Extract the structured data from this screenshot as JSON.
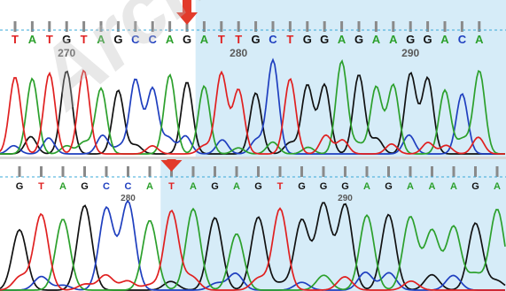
{
  "colors": {
    "A": "#2ca02c",
    "C": "#1f3fbf",
    "G": "#111111",
    "T": "#e02020",
    "highlight": "#d6ecf8",
    "marker": "#e23a2a",
    "tick": "#8a8a8a",
    "guide": "#3aa8d8"
  },
  "top_trace": {
    "bases": [
      "T",
      "A",
      "T",
      "G",
      "T",
      "A",
      "G",
      "C",
      "C",
      "A",
      "G",
      "A",
      "T",
      "T",
      "G",
      "C",
      "T",
      "G",
      "G",
      "A",
      "G",
      "A",
      "A",
      "G",
      "G",
      "A",
      "C",
      "A"
    ],
    "positions": [
      {
        "label": "270",
        "base_index": 3
      },
      {
        "label": "280",
        "base_index": 13
      },
      {
        "label": "290",
        "base_index": 23
      }
    ],
    "marker_base_index": 10,
    "highlight_start_index": 11
  },
  "bottom_trace": {
    "bases": [
      "G",
      "T",
      "A",
      "G",
      "C",
      "C",
      "A",
      "T",
      "A",
      "G",
      "A",
      "G",
      "T",
      "G",
      "G",
      "G",
      "A",
      "G",
      "A",
      "A",
      "A",
      "G",
      "A"
    ],
    "positions": [
      {
        "label": "280",
        "base_index": 5
      },
      {
        "label": "290",
        "base_index": 15
      }
    ],
    "marker_base_index": 7,
    "highlight_start_index": 7
  },
  "watermark": {
    "text": "Archive"
  }
}
